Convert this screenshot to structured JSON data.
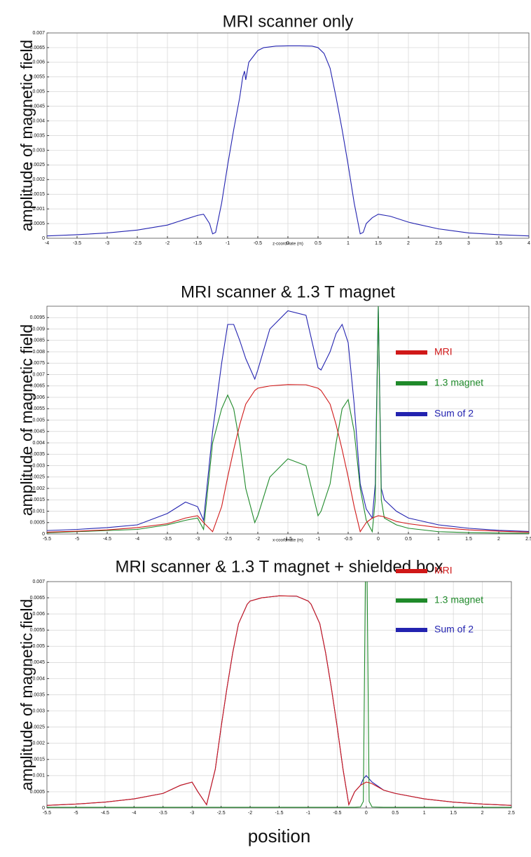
{
  "chart_data": [
    {
      "type": "line",
      "title": "MRI scanner only",
      "y_label": "amplitude of magnetic field",
      "x_label": "z-coordinate (m)",
      "x": [
        -4,
        -3.5,
        -3,
        -2.5,
        -2,
        -1.7,
        -1.5,
        -1.4,
        -1.3,
        -1.25,
        -1.2,
        -1.1,
        -1,
        -0.9,
        -0.8,
        -0.75,
        -0.72,
        -0.7,
        -0.65,
        -0.5,
        -0.4,
        -0.2,
        0,
        0.2,
        0.4,
        0.5,
        0.6,
        0.7,
        0.8,
        0.9,
        1,
        1.1,
        1.2,
        1.25,
        1.3,
        1.4,
        1.5,
        1.7,
        2,
        2.1,
        2.5,
        3,
        3.5,
        4
      ],
      "series": [
        {
          "color": "#2323b0",
          "values": [
            8e-05,
            0.00012,
            0.00018,
            0.00028,
            0.00045,
            0.00065,
            0.00078,
            0.00082,
            0.0005,
            0.00015,
            0.0002,
            0.0012,
            0.0025,
            0.0037,
            0.0048,
            0.0055,
            0.0057,
            0.0054,
            0.006,
            0.0064,
            0.0065,
            0.00655,
            0.00656,
            0.00656,
            0.00655,
            0.0065,
            0.0063,
            0.0058,
            0.0048,
            0.0037,
            0.0025,
            0.0012,
            0.00015,
            0.0002,
            0.0005,
            0.0007,
            0.00082,
            0.00075,
            0.00055,
            0.0005,
            0.00032,
            0.00018,
            0.00012,
            8e-05
          ]
        }
      ],
      "xlim": [
        -4,
        4
      ],
      "xticks": [
        -4,
        -3.5,
        -3,
        -2.5,
        -2,
        -1.5,
        -1,
        -0.5,
        0,
        0.5,
        1,
        1.5,
        2,
        2.5,
        3,
        3.5,
        4
      ],
      "ylim": [
        0,
        0.007
      ],
      "yticks": [
        0,
        0.0005,
        0.001,
        0.0015,
        0.002,
        0.0025,
        0.003,
        0.0035,
        0.004,
        0.0045,
        0.005,
        0.0055,
        0.006,
        0.0065,
        0.007
      ],
      "grid": true
    },
    {
      "type": "line",
      "title": "MRI scanner & 1.3 T magnet",
      "y_label": "amplitude of magnetic field",
      "x_label": "x-coordinate (m)",
      "x": [
        -5.5,
        -5,
        -4.5,
        -4,
        -3.5,
        -3.2,
        -3,
        -2.9,
        -2.75,
        -2.6,
        -2.5,
        -2.4,
        -2.3,
        -2.2,
        -2.05,
        -2,
        -1.8,
        -1.5,
        -1.2,
        -1,
        -0.95,
        -0.8,
        -0.7,
        -0.6,
        -0.5,
        -0.4,
        -0.3,
        -0.2,
        -0.1,
        -0.05,
        0,
        0.05,
        0.1,
        0.3,
        0.5,
        1,
        1.5,
        2,
        2.5
      ],
      "series": [
        {
          "name": "Sum of 2",
          "color": "#2323b0",
          "values": [
            0.00015,
            0.0002,
            0.00028,
            0.0004,
            0.0009,
            0.0014,
            0.0012,
            0.0006,
            0.0045,
            0.0075,
            0.0092,
            0.0092,
            0.0085,
            0.0077,
            0.0068,
            0.0072,
            0.009,
            0.0098,
            0.0096,
            0.0073,
            0.0072,
            0.008,
            0.0088,
            0.0092,
            0.0084,
            0.0057,
            0.0022,
            0.0011,
            0.0007,
            0.0022,
            0.01,
            0.002,
            0.0015,
            0.001,
            0.0007,
            0.0004,
            0.00025,
            0.00016,
            0.00011
          ]
        },
        {
          "name": "1.3 magnet",
          "color": "#1f8a2a",
          "values": [
            5e-05,
            0.0001,
            0.00015,
            0.0002,
            0.0004,
            0.0006,
            0.0007,
            0.0002,
            0.004,
            0.0055,
            0.0061,
            0.0055,
            0.004,
            0.002,
            0.0005,
            0.0008,
            0.0025,
            0.0033,
            0.003,
            0.0008,
            0.001,
            0.0022,
            0.004,
            0.0055,
            0.0059,
            0.0045,
            0.002,
            0.0006,
            0.0001,
            0.0015,
            0.01,
            0.0015,
            0.0007,
            0.0004,
            0.00025,
            0.0001,
            6e-05,
            4e-05,
            3e-05
          ]
        },
        {
          "name": "MRI",
          "color": "#d01818",
          "values": [
            8e-05,
            0.00012,
            0.00018,
            0.00028,
            0.00045,
            0.0007,
            0.0008,
            0.0005,
            0.0001,
            0.0012,
            0.0025,
            0.0037,
            0.0048,
            0.0057,
            0.0063,
            0.0064,
            0.0065,
            0.00656,
            0.00655,
            0.0064,
            0.0063,
            0.0057,
            0.0048,
            0.0037,
            0.0025,
            0.0012,
            0.0001,
            0.0005,
            0.0007,
            0.00075,
            0.0008,
            0.00078,
            0.00075,
            0.00055,
            0.00045,
            0.00028,
            0.00018,
            0.00012,
            8e-05
          ]
        }
      ],
      "legend": "right",
      "xlim": [
        -5.5,
        2.5
      ],
      "xticks": [
        -5.5,
        -5,
        -4.5,
        -4,
        -3.5,
        -3,
        -2.5,
        -2,
        -1.5,
        -1,
        -0.5,
        0,
        0.5,
        1,
        1.5,
        2,
        2.5
      ],
      "ylim": [
        0,
        0.01
      ],
      "yticks": [
        0,
        0.0005,
        0.001,
        0.0015,
        0.002,
        0.0025,
        0.003,
        0.0035,
        0.004,
        0.0045,
        0.005,
        0.0055,
        0.006,
        0.0065,
        0.007,
        0.0075,
        0.008,
        0.0085,
        0.009,
        0.0095
      ],
      "grid": true
    },
    {
      "type": "line",
      "title": "MRI scanner & 1.3 T magnet + shielded box",
      "y_label": "amplitude of magnetic field",
      "x_label": "position",
      "x": [
        -5.5,
        -5,
        -4.5,
        -4,
        -3.5,
        -3.2,
        -3,
        -2.9,
        -2.75,
        -2.6,
        -2.5,
        -2.4,
        -2.3,
        -2.2,
        -2.05,
        -2,
        -1.8,
        -1.5,
        -1.2,
        -1,
        -0.95,
        -0.8,
        -0.7,
        -0.6,
        -0.5,
        -0.4,
        -0.3,
        -0.2,
        -0.1,
        -0.05,
        0,
        0.05,
        0.1,
        0.3,
        0.5,
        1,
        1.5,
        2,
        2.5
      ],
      "series": [
        {
          "name": "Sum of 2",
          "color": "#2323b0",
          "values": [
            8e-05,
            0.00012,
            0.00018,
            0.00028,
            0.00045,
            0.0007,
            0.0008,
            0.0005,
            0.0001,
            0.0012,
            0.0025,
            0.0037,
            0.0048,
            0.0057,
            0.0063,
            0.0064,
            0.0065,
            0.00656,
            0.00655,
            0.0064,
            0.0063,
            0.0057,
            0.0048,
            0.0037,
            0.0025,
            0.0012,
            0.0001,
            0.0005,
            0.0007,
            0.0009,
            0.001,
            0.0009,
            0.0008,
            0.00055,
            0.00045,
            0.00028,
            0.00018,
            0.00012,
            8e-05
          ]
        },
        {
          "name": "1.3 magnet",
          "color": "#1f8a2a",
          "values": [
            2e-05,
            2e-05,
            2e-05,
            2e-05,
            2e-05,
            2e-05,
            2e-05,
            2e-05,
            2e-05,
            2e-05,
            2e-05,
            2e-05,
            2e-05,
            2e-05,
            2e-05,
            2e-05,
            2e-05,
            2e-05,
            2e-05,
            2e-05,
            2e-05,
            2e-05,
            2e-05,
            2e-05,
            2e-05,
            2e-05,
            2e-05,
            2e-05,
            3e-05,
            0.0002,
            0.01,
            0.0002,
            3e-05,
            2e-05,
            2e-05,
            2e-05,
            2e-05,
            2e-05,
            2e-05
          ]
        },
        {
          "name": "MRI",
          "color": "#d01818",
          "values": [
            8e-05,
            0.00012,
            0.00018,
            0.00028,
            0.00045,
            0.0007,
            0.0008,
            0.0005,
            0.0001,
            0.0012,
            0.0025,
            0.0037,
            0.0048,
            0.0057,
            0.0063,
            0.0064,
            0.0065,
            0.00656,
            0.00655,
            0.0064,
            0.0063,
            0.0057,
            0.0048,
            0.0037,
            0.0025,
            0.0012,
            0.0001,
            0.0005,
            0.0007,
            0.00075,
            0.0008,
            0.00078,
            0.00075,
            0.00055,
            0.00045,
            0.00028,
            0.00018,
            0.00012,
            8e-05
          ]
        }
      ],
      "legend": "right",
      "xlim": [
        -5.5,
        2.5
      ],
      "xticks": [
        -5.5,
        -5,
        -4.5,
        -4,
        -3.5,
        -3,
        -2.5,
        -2,
        -1.5,
        -1,
        -0.5,
        0,
        0.5,
        1,
        1.5,
        2,
        2.5
      ],
      "ylim": [
        0,
        0.007
      ],
      "yticks": [
        0,
        0.0005,
        0.001,
        0.0015,
        0.002,
        0.0025,
        0.003,
        0.0035,
        0.004,
        0.0045,
        0.005,
        0.0055,
        0.006,
        0.0065,
        0.007
      ],
      "grid": true
    }
  ]
}
